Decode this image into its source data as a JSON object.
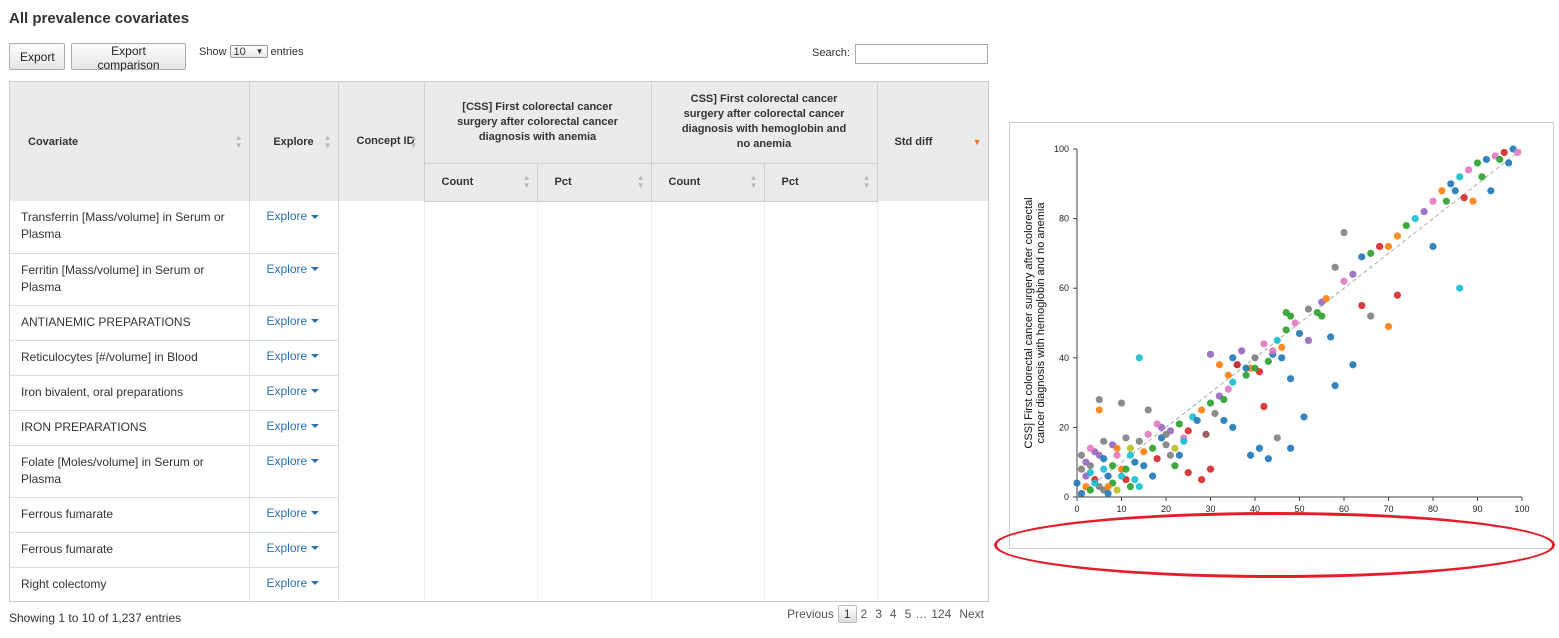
{
  "page": {
    "title": "All prevalence covariates"
  },
  "toolbar": {
    "export_label": "Export",
    "export_comparison_label": "Export comparison"
  },
  "length": {
    "show_label": "Show",
    "value": "10",
    "entries_label": "entries"
  },
  "search": {
    "label": "Search:",
    "value": ""
  },
  "table": {
    "headers": {
      "covariate": "Covariate",
      "explore": "Explore",
      "concept_id": "Concept ID",
      "target": "[CSS] First colorectal cancer surgery after colorectal cancer diagnosis with anemia",
      "comparator": "CSS] First colorectal cancer surgery after colorectal cancer diagnosis with hemoglobin and no anemia",
      "std_diff": "Std diff",
      "count": "Count",
      "pct": "Pct"
    },
    "rows": [
      {
        "covariate": "Transferrin [Mass/volume] in Serum or Plasma",
        "explore": "Explore"
      },
      {
        "covariate": "Ferritin [Mass/volume] in Serum or Plasma",
        "explore": "Explore"
      },
      {
        "covariate": "ANTIANEMIC PREPARATIONS",
        "explore": "Explore"
      },
      {
        "covariate": "Reticulocytes [#/volume] in Blood",
        "explore": "Explore"
      },
      {
        "covariate": "Iron bivalent, oral preparations",
        "explore": "Explore"
      },
      {
        "covariate": "IRON PREPARATIONS",
        "explore": "Explore"
      },
      {
        "covariate": "Folate [Moles/volume] in Serum or Plasma",
        "explore": "Explore"
      },
      {
        "covariate": "Ferrous fumarate",
        "explore": "Explore"
      },
      {
        "covariate": "Ferrous fumarate",
        "explore": "Explore"
      },
      {
        "covariate": "Right colectomy",
        "explore": "Explore"
      }
    ]
  },
  "footer": {
    "info": "Showing 1 to 10 of 1,237 entries",
    "previous": "Previous",
    "pages": [
      "1",
      "2",
      "3",
      "4",
      "5"
    ],
    "ellipsis": "…",
    "last_page": "124",
    "next": "Next"
  },
  "chart_data": {
    "type": "scatter",
    "ylabel": "CSS] First colorectal cancer surgery after colorectal cancer diagnosis with hemoglobin and no anemia",
    "xlabel": "",
    "xlim": [
      0,
      100
    ],
    "ylim": [
      0,
      100
    ],
    "xticks": [
      "0",
      "10",
      "20",
      "30",
      "40",
      "50",
      "60",
      "70",
      "80",
      "90",
      "100"
    ],
    "yticks": [
      "0",
      "20",
      "40",
      "60",
      "80",
      "100"
    ],
    "reference_line": "diagonal dashed",
    "colors": [
      "#1f77b4",
      "#ff7f0e",
      "#2ca02c",
      "#d62728",
      "#9467bd",
      "#8c564b",
      "#e377c2",
      "#7f7f7f",
      "#bcbd22",
      "#17becf"
    ],
    "points": [
      [
        1,
        1,
        0
      ],
      [
        2,
        3,
        1
      ],
      [
        3,
        2,
        2
      ],
      [
        4,
        5,
        3
      ],
      [
        2,
        6,
        4
      ],
      [
        5,
        3,
        7
      ],
      [
        6,
        8,
        9
      ],
      [
        7,
        6,
        0
      ],
      [
        8,
        4,
        2
      ],
      [
        3,
        9,
        7
      ],
      [
        9,
        12,
        6
      ],
      [
        10,
        8,
        1
      ],
      [
        11,
        5,
        3
      ],
      [
        12,
        14,
        8
      ],
      [
        13,
        10,
        0
      ],
      [
        14,
        3,
        9
      ],
      [
        5,
        12,
        4
      ],
      [
        6,
        2,
        7
      ],
      [
        8,
        9,
        2
      ],
      [
        4,
        4,
        9
      ],
      [
        15,
        13,
        1
      ],
      [
        16,
        18,
        6
      ],
      [
        17,
        14,
        2
      ],
      [
        18,
        11,
        3
      ],
      [
        19,
        17,
        0
      ],
      [
        20,
        15,
        7
      ],
      [
        21,
        19,
        4
      ],
      [
        22,
        14,
        8
      ],
      [
        23,
        21,
        2
      ],
      [
        24,
        17,
        6
      ],
      [
        25,
        19,
        3
      ],
      [
        26,
        23,
        9
      ],
      [
        27,
        22,
        0
      ],
      [
        28,
        25,
        1
      ],
      [
        29,
        18,
        5
      ],
      [
        30,
        27,
        2
      ],
      [
        31,
        24,
        7
      ],
      [
        32,
        29,
        4
      ],
      [
        33,
        22,
        0
      ],
      [
        34,
        31,
        6
      ],
      [
        35,
        33,
        9
      ],
      [
        36,
        38,
        0
      ],
      [
        37,
        42,
        4
      ],
      [
        38,
        35,
        2
      ],
      [
        39,
        37,
        1
      ],
      [
        40,
        40,
        7
      ],
      [
        41,
        36,
        3
      ],
      [
        42,
        44,
        6
      ],
      [
        43,
        39,
        2
      ],
      [
        44,
        41,
        0
      ],
      [
        45,
        45,
        9
      ],
      [
        46,
        43,
        1
      ],
      [
        47,
        48,
        2
      ],
      [
        48,
        52,
        2
      ],
      [
        49,
        50,
        6
      ],
      [
        50,
        47,
        0
      ],
      [
        52,
        54,
        7
      ],
      [
        54,
        53,
        2
      ],
      [
        55,
        56,
        4
      ],
      [
        56,
        57,
        1
      ],
      [
        58,
        66,
        7
      ],
      [
        60,
        62,
        6
      ],
      [
        62,
        64,
        4
      ],
      [
        64,
        69,
        0
      ],
      [
        66,
        70,
        2
      ],
      [
        68,
        72,
        3
      ],
      [
        70,
        72,
        1
      ],
      [
        72,
        75,
        1
      ],
      [
        74,
        78,
        2
      ],
      [
        76,
        80,
        9
      ],
      [
        78,
        82,
        4
      ],
      [
        80,
        85,
        6
      ],
      [
        82,
        88,
        1
      ],
      [
        84,
        90,
        0
      ],
      [
        86,
        92,
        9
      ],
      [
        88,
        94,
        6
      ],
      [
        90,
        96,
        2
      ],
      [
        92,
        97,
        0
      ],
      [
        94,
        98,
        6
      ],
      [
        96,
        99,
        3
      ],
      [
        98,
        100,
        0
      ],
      [
        99,
        99,
        6
      ],
      [
        97,
        96,
        0
      ],
      [
        95,
        97,
        2
      ],
      [
        93,
        88,
        0
      ],
      [
        91,
        92,
        2
      ],
      [
        89,
        85,
        1
      ],
      [
        87,
        86,
        3
      ],
      [
        85,
        88,
        0
      ],
      [
        83,
        85,
        2
      ],
      [
        10,
        27,
        7
      ],
      [
        6,
        16,
        7
      ],
      [
        5,
        25,
        1
      ],
      [
        5,
        28,
        7
      ],
      [
        14,
        40,
        9
      ],
      [
        30,
        41,
        4
      ],
      [
        32,
        38,
        1
      ],
      [
        35,
        40,
        0
      ],
      [
        38,
        37,
        0
      ],
      [
        40,
        37,
        2
      ],
      [
        46,
        40,
        0
      ],
      [
        48,
        34,
        0
      ],
      [
        51,
        23,
        0
      ],
      [
        58,
        32,
        0
      ],
      [
        62,
        38,
        0
      ],
      [
        66,
        52,
        7
      ],
      [
        70,
        49,
        1
      ],
      [
        72,
        58,
        3
      ],
      [
        80,
        72,
        0
      ],
      [
        86,
        60,
        9
      ],
      [
        42,
        26,
        3
      ],
      [
        45,
        17,
        7
      ],
      [
        39,
        12,
        0
      ],
      [
        35,
        20,
        0
      ],
      [
        41,
        14,
        0
      ],
      [
        43,
        11,
        0
      ],
      [
        48,
        14,
        0
      ],
      [
        30,
        8,
        3
      ],
      [
        23,
        12,
        0
      ],
      [
        28,
        5,
        3
      ],
      [
        20,
        18,
        7
      ],
      [
        21,
        12,
        7
      ],
      [
        22,
        9,
        2
      ],
      [
        24,
        16,
        9
      ],
      [
        25,
        7,
        3
      ],
      [
        19,
        20,
        4
      ],
      [
        18,
        21,
        6
      ],
      [
        16,
        25,
        7
      ],
      [
        17,
        6,
        0
      ],
      [
        12,
        12,
        9
      ],
      [
        60,
        76,
        7
      ],
      [
        64,
        55,
        3
      ],
      [
        55,
        52,
        2
      ],
      [
        57,
        46,
        0
      ],
      [
        52,
        45,
        4
      ],
      [
        47,
        53,
        2
      ],
      [
        44,
        42,
        6
      ],
      [
        36,
        38,
        3
      ],
      [
        34,
        35,
        1
      ],
      [
        33,
        28,
        2
      ],
      [
        1,
        8,
        7
      ],
      [
        2,
        10,
        4
      ],
      [
        0,
        4,
        0
      ],
      [
        1,
        12,
        7
      ],
      [
        3,
        7,
        9
      ],
      [
        4,
        13,
        4
      ],
      [
        7,
        3,
        1
      ],
      [
        9,
        2,
        8
      ],
      [
        11,
        8,
        2
      ],
      [
        13,
        5,
        9
      ],
      [
        8,
        15,
        4
      ],
      [
        6,
        11,
        0
      ],
      [
        3,
        14,
        6
      ],
      [
        12,
        3,
        2
      ],
      [
        15,
        9,
        0
      ],
      [
        14,
        16,
        7
      ],
      [
        10,
        6,
        9
      ],
      [
        7,
        1,
        0
      ],
      [
        9,
        14,
        1
      ],
      [
        11,
        17,
        7
      ]
    ]
  }
}
